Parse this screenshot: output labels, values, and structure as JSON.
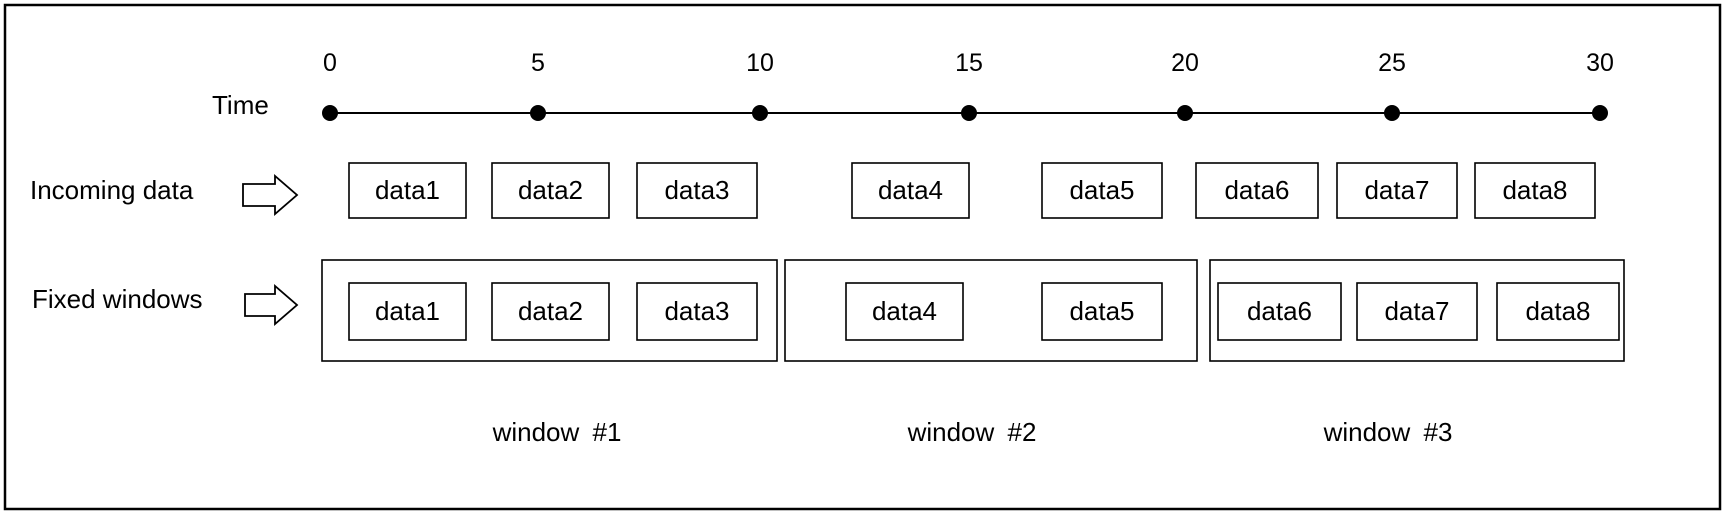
{
  "timeline": {
    "label": "Time",
    "ticks": [
      "0",
      "5",
      "10",
      "15",
      "20",
      "25",
      "30"
    ]
  },
  "incoming": {
    "label": "Incoming data",
    "items": [
      "data1",
      "data2",
      "data3",
      "data4",
      "data5",
      "data6",
      "data7",
      "data8"
    ]
  },
  "fixed": {
    "label": "Fixed windows",
    "windows": [
      {
        "name": "window  #1",
        "items": [
          "data1",
          "data2",
          "data3"
        ]
      },
      {
        "name": "window  #2",
        "items": [
          "data4",
          "data5"
        ]
      },
      {
        "name": "window  #3",
        "items": [
          "data6",
          "data7",
          "data8"
        ]
      }
    ]
  }
}
